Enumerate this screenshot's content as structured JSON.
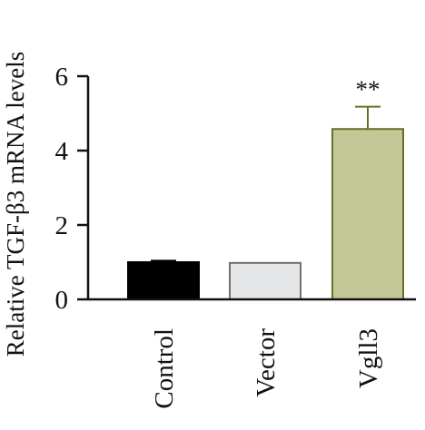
{
  "chart_data": {
    "type": "bar",
    "title": "",
    "xlabel": "",
    "ylabel": "Relative TGF-β3 mRNA levels",
    "categories": [
      "Control",
      "Vector",
      "Vgll3"
    ],
    "values": [
      1.0,
      0.98,
      4.58
    ],
    "errors": [
      0.04,
      0.0,
      0.6
    ],
    "annotations": [
      "",
      "",
      "**"
    ],
    "ylim": [
      0,
      6
    ],
    "yticks": [
      "0",
      "2",
      "4",
      "6"
    ],
    "grid": false,
    "legend": "none",
    "colors": {
      "fills": [
        "#000000",
        "#e5e6e8",
        "#c3c795"
      ],
      "edges": [
        "#000000",
        "#6f6f6f",
        "#6a6e2a"
      ],
      "axis": "#111111"
    }
  }
}
